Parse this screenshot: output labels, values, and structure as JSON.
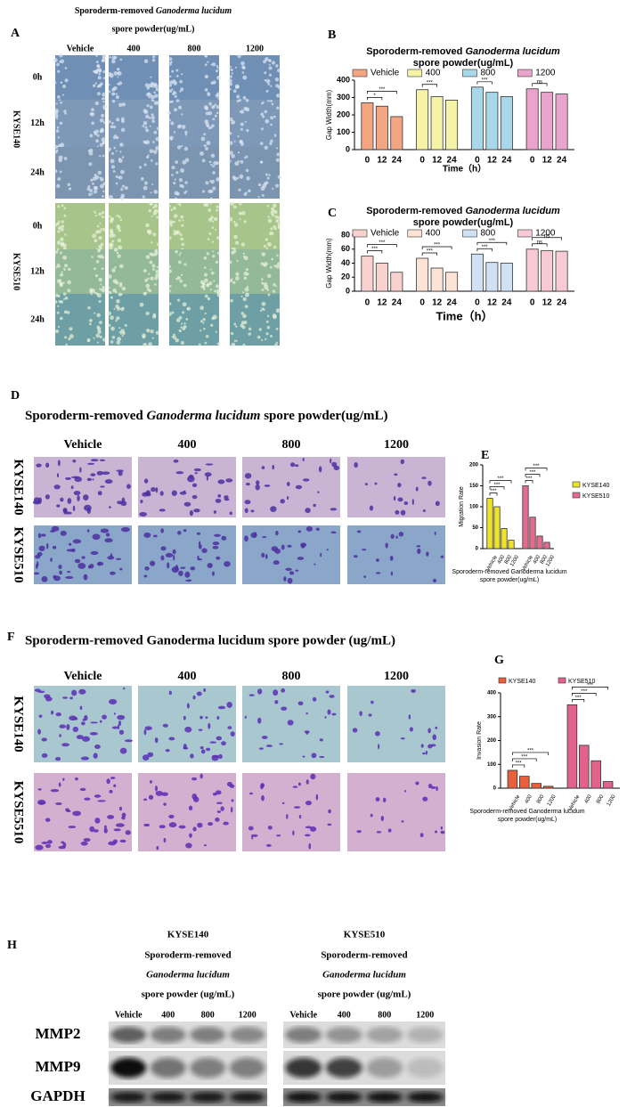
{
  "panel_a": {
    "label": "A",
    "title_1": "Sporoderm-removed ",
    "title_italic": "Ganoderma lucidum",
    "title_2": "spore powder(ug/mL)",
    "columns": [
      "Vehicle",
      "400",
      "800",
      "1200"
    ],
    "cell_lines": [
      "KYSE140",
      "KYSE510"
    ],
    "times": [
      "0h",
      "12h",
      "24h"
    ]
  },
  "chart_data": [
    {
      "type": "bar",
      "label": "B",
      "title_1": "Sporoderm-removed ",
      "title_italic": "Ganoderma lucidum",
      "title_2": "spore powder(ug/mL)",
      "categories": [
        "0",
        "12",
        "24"
      ],
      "series": [
        {
          "name": "Vehicle",
          "color": "#f4a582",
          "values": [
            270,
            250,
            190
          ],
          "significance": [
            "*",
            "***"
          ]
        },
        {
          "name": "400",
          "color": "#f6f2a6",
          "values": [
            345,
            305,
            285
          ],
          "significance": [
            "***"
          ]
        },
        {
          "name": "800",
          "color": "#a9d7ea",
          "values": [
            360,
            330,
            305
          ],
          "significance": [
            "***"
          ]
        },
        {
          "name": "1200",
          "color": "#eaa3cb",
          "values": [
            350,
            330,
            320
          ],
          "significance": [
            "ns"
          ]
        }
      ],
      "ylabel": "Gap Width(mm)",
      "xlabel": "Time（h）",
      "ylim": [
        0,
        400
      ],
      "yticks": [
        0,
        100,
        200,
        300,
        400
      ],
      "legend": "top"
    },
    {
      "type": "bar",
      "label": "C",
      "title_1": "Sporoderm-removed ",
      "title_italic": "Ganoderma lucidum",
      "title_2": "spore powder(ug/mL)",
      "categories": [
        "0",
        "12",
        "24"
      ],
      "series": [
        {
          "name": "Vehicle",
          "color": "#f9d2cf",
          "values": [
            50,
            40,
            27
          ],
          "significance": [
            "***",
            "***"
          ]
        },
        {
          "name": "400",
          "color": "#fde3d6",
          "values": [
            47,
            33,
            27
          ],
          "significance": [
            "***",
            "***"
          ]
        },
        {
          "name": "800",
          "color": "#cfe2f4",
          "values": [
            53,
            41,
            40
          ],
          "significance": [
            "***",
            "***"
          ]
        },
        {
          "name": "1200",
          "color": "#f7cad5",
          "values": [
            60,
            58,
            57
          ],
          "significance": [
            "ns",
            "ns"
          ]
        }
      ],
      "ylabel": "Gap Width(mm)",
      "xlabel": "Time（h）",
      "ylim": [
        0,
        80
      ],
      "yticks": [
        0,
        20,
        40,
        60,
        80
      ],
      "legend": "top"
    },
    {
      "type": "bar",
      "label": "E",
      "categories": [
        "Vehicle",
        "400",
        "800",
        "1200"
      ],
      "series": [
        {
          "name": "KYSE140",
          "color": "#eee324",
          "values": [
            120,
            100,
            48,
            20
          ],
          "significance": [
            "***",
            "***",
            "***"
          ]
        },
        {
          "name": "KYSE510",
          "color": "#e46b8f",
          "values": [
            150,
            75,
            30,
            15
          ],
          "significance": [
            "***",
            "***",
            "***"
          ]
        }
      ],
      "ylabel": "Migration Rate",
      "xlabel_1": "Sporoderm-removed Ganoderma lucidum",
      "xlabel_2": "spore powder(ug/mL)",
      "ylim": [
        0,
        200
      ],
      "yticks": [
        0,
        50,
        100,
        150,
        200
      ],
      "legend": "right"
    },
    {
      "type": "bar",
      "label": "G",
      "categories": [
        "Vehicle",
        "400",
        "800",
        "1200"
      ],
      "series": [
        {
          "name": "KYSE140",
          "color": "#e8603c",
          "values": [
            75,
            50,
            20,
            8
          ],
          "significance": [
            "***",
            "***",
            "***"
          ]
        },
        {
          "name": "KYSE510",
          "color": "#e2628c",
          "values": [
            350,
            180,
            115,
            28
          ],
          "significance": [
            "***",
            "***",
            "***"
          ]
        }
      ],
      "ylabel": "Invasion Rate",
      "xlabel_1": "Sporoderm-removed Ganoderma lucidum",
      "xlabel_2": "spore powder(ug/mL)",
      "ylim": [
        0,
        400
      ],
      "yticks": [
        0,
        100,
        200,
        300,
        400
      ],
      "legend": "top"
    }
  ],
  "panel_d": {
    "label": "D",
    "title_1": "Sporoderm-removed ",
    "title_italic": "Ganoderma lucidum",
    "title_2": " spore powder(ug/mL)",
    "columns": [
      "Vehicle",
      "400",
      "800",
      "1200"
    ],
    "rows": [
      "KYSE140",
      "KYSE510"
    ]
  },
  "panel_f": {
    "label": "F",
    "title": "Sporoderm-removed Ganoderma lucidum spore powder (ug/mL)",
    "columns": [
      "Vehicle",
      "400",
      "800",
      "1200"
    ],
    "rows": [
      "KYSE140",
      "KYSE5510"
    ]
  },
  "panel_h": {
    "label": "H",
    "proteins": [
      "MMP2",
      "MMP9",
      "GAPDH"
    ],
    "groups": [
      {
        "cell_line": "KYSE140",
        "line_1": "Sporoderm-removed",
        "line_2": "Ganoderma lucidum",
        "line_3": "spore powder (ug/mL)",
        "lanes": [
          "Vehicle",
          "400",
          "800",
          "1200"
        ]
      },
      {
        "cell_line": "KYSE510",
        "line_1": "Sporoderm-removed",
        "line_2": "Ganoderma lucidum",
        "line_3": "spore powder (ug/mL)",
        "lanes": [
          "Vehicle",
          "400",
          "800",
          "1200"
        ]
      }
    ]
  }
}
